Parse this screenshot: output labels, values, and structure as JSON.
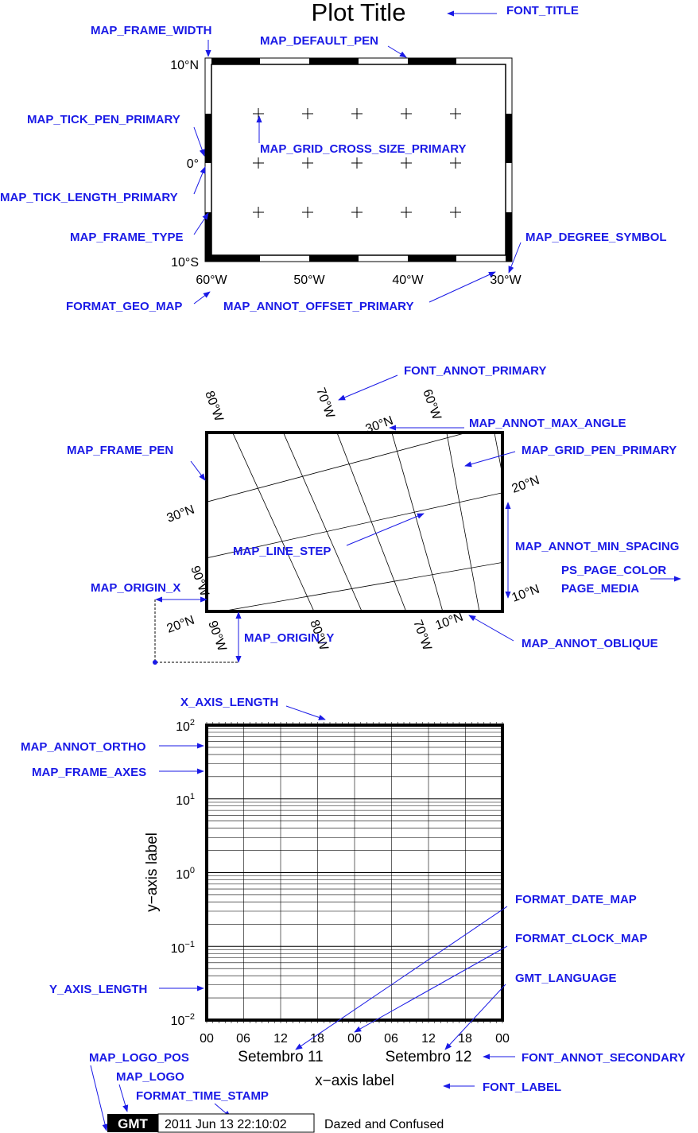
{
  "colors": {
    "label": "#1a1ae6",
    "ink": "#000000",
    "paper": "#ffffff"
  },
  "panel1": {
    "title": "Plot Title",
    "y_ticks": [
      "10°N",
      "0°",
      "10°S"
    ],
    "x_ticks": [
      "60°W",
      "50°W",
      "40°W",
      "30°W"
    ],
    "labels": {
      "font_title": "FONT_TITLE",
      "frame_width": "MAP_FRAME_WIDTH",
      "default_pen": "MAP_DEFAULT_PEN",
      "tick_pen": "MAP_TICK_PEN_PRIMARY",
      "grid_cross": "MAP_GRID_CROSS_SIZE_PRIMARY",
      "tick_length": "MAP_TICK_LENGTH_PRIMARY",
      "frame_type": "MAP_FRAME_TYPE",
      "degree_symbol": "MAP_DEGREE_SYMBOL",
      "format_geo": "FORMAT_GEO_MAP",
      "annot_offset": "MAP_ANNOT_OFFSET_PRIMARY"
    }
  },
  "panel2": {
    "top_ticks": [
      "80°W",
      "70°W",
      "60°W",
      "30°N"
    ],
    "left_tick": "30°N",
    "right_ticks": [
      "20°N",
      "10°N"
    ],
    "bottom_ticks": [
      "20°N",
      "90°W",
      "80°W",
      "70°W",
      "10°N"
    ],
    "side_tick": "90°W",
    "labels": {
      "font_annot": "FONT_ANNOT_PRIMARY",
      "max_angle": "MAP_ANNOT_MAX_ANGLE",
      "frame_pen": "MAP_FRAME_PEN",
      "grid_pen": "MAP_GRID_PEN_PRIMARY",
      "line_step": "MAP_LINE_STEP",
      "min_spacing": "MAP_ANNOT_MIN_SPACING",
      "page_color": "PS_PAGE_COLOR",
      "page_media": "PAGE_MEDIA",
      "origin_x": "MAP_ORIGIN_X",
      "origin_y": "MAP_ORIGIN_Y",
      "annot_oblique": "MAP_ANNOT_OBLIQUE"
    }
  },
  "panel3": {
    "y_exponents": [
      "2",
      "1",
      "0",
      "−1",
      "−2"
    ],
    "y_base": "10",
    "time_ticks": [
      "00",
      "06",
      "12",
      "18",
      "00",
      "06",
      "12",
      "18",
      "00"
    ],
    "date_ticks": [
      "Setembro 11",
      "Setembro 12"
    ],
    "x_label": "x−axis label",
    "y_label": "y−axis label",
    "labels": {
      "x_length": "X_AXIS_LENGTH",
      "annot_ortho": "MAP_ANNOT_ORTHO",
      "frame_axes": "MAP_FRAME_AXES",
      "date_map": "FORMAT_DATE_MAP",
      "clock_map": "FORMAT_CLOCK_MAP",
      "language": "GMT_LANGUAGE",
      "y_length": "Y_AXIS_LENGTH",
      "annot_secondary": "FONT_ANNOT_SECONDARY",
      "font_label": "FONT_LABEL",
      "logo_pos": "MAP_LOGO_POS",
      "logo": "MAP_LOGO",
      "time_stamp": "FORMAT_TIME_STAMP"
    }
  },
  "timestamp": {
    "logo": "GMT",
    "time": "2011 Jun 13 22:10:02",
    "note": "Dazed and Confused"
  }
}
